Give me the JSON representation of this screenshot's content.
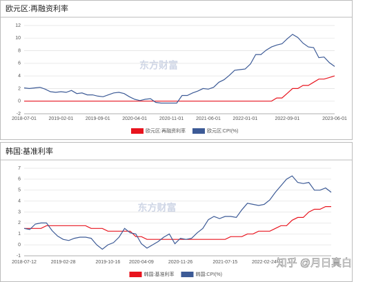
{
  "chart_data": [
    {
      "type": "line",
      "title": "欧元区:再融资利率",
      "watermark": "东方财富",
      "categories": [
        "2018-07-01",
        null,
        null,
        null,
        null,
        null,
        null,
        "2019-02-01",
        null,
        null,
        null,
        null,
        null,
        null,
        "2019-09-01",
        null,
        null,
        null,
        null,
        null,
        null,
        "2020-04-01",
        null,
        null,
        null,
        null,
        null,
        null,
        "2020-11-01",
        null,
        null,
        null,
        null,
        null,
        null,
        "2021-06-01",
        null,
        null,
        null,
        null,
        null,
        null,
        "2022-01-01",
        null,
        null,
        null,
        null,
        null,
        null,
        null,
        "2022-09-01",
        null,
        null,
        null,
        null,
        null,
        null,
        null,
        null,
        "2023-06-01"
      ],
      "series": [
        {
          "name": "欧元区:再融资利率",
          "color": "#e8141e",
          "values": [
            0,
            0,
            0,
            0,
            0,
            0,
            0,
            0,
            0,
            0,
            0,
            0,
            0,
            0,
            0,
            0,
            0,
            0,
            0,
            0,
            0,
            0,
            0,
            0,
            0,
            0,
            0,
            0,
            0,
            0,
            0,
            0,
            0,
            0,
            0,
            0,
            0,
            0,
            0,
            0,
            0,
            0,
            0,
            0,
            0,
            0,
            0,
            0,
            0.5,
            0.5,
            1.25,
            2.0,
            2.0,
            2.5,
            2.5,
            3.0,
            3.5,
            3.5,
            3.75,
            4.0
          ]
        },
        {
          "name": "欧元区:CPI(%)",
          "color": "#3c5a96",
          "values": [
            2.1,
            2.0,
            2.1,
            2.2,
            1.9,
            1.5,
            1.4,
            1.5,
            1.4,
            1.7,
            1.2,
            1.3,
            1.0,
            1.0,
            0.8,
            0.7,
            1.0,
            1.3,
            1.4,
            1.2,
            0.7,
            0.3,
            0.1,
            0.3,
            0.4,
            -0.2,
            -0.3,
            -0.3,
            -0.3,
            -0.3,
            0.9,
            0.9,
            1.3,
            1.6,
            2.0,
            1.9,
            2.2,
            3.0,
            3.4,
            4.1,
            4.9,
            5.0,
            5.1,
            5.9,
            7.4,
            7.4,
            8.1,
            8.6,
            8.9,
            9.1,
            9.9,
            10.6,
            10.1,
            9.2,
            8.6,
            8.5,
            6.9,
            7.0,
            6.1,
            5.5
          ]
        }
      ],
      "ylim": [
        -2,
        12
      ],
      "yticks": [
        -2,
        0,
        2,
        4,
        6,
        8,
        10,
        12
      ],
      "grid": true
    },
    {
      "type": "line",
      "title": "韩国:基准利率",
      "watermark": "东方财富",
      "categories": [
        "2018-07-12",
        null,
        null,
        null,
        null,
        null,
        null,
        "2019-02-28",
        null,
        null,
        null,
        null,
        null,
        null,
        null,
        "2019-10-16",
        null,
        null,
        null,
        null,
        null,
        "2020-04-09",
        null,
        null,
        null,
        null,
        null,
        null,
        "2020-11-26",
        null,
        null,
        null,
        null,
        null,
        null,
        null,
        "2021-07-15",
        null,
        null,
        null,
        null,
        null,
        null,
        "2022-02-24",
        null,
        null,
        null,
        null,
        null,
        null,
        null,
        null,
        null,
        null,
        null,
        null
      ],
      "series": [
        {
          "name": "韩国:基准利率",
          "color": "#e8141e",
          "values": [
            1.5,
            1.5,
            1.5,
            1.5,
            1.75,
            1.75,
            1.75,
            1.75,
            1.75,
            1.75,
            1.75,
            1.75,
            1.5,
            1.5,
            1.5,
            1.25,
            1.25,
            1.25,
            1.25,
            1.25,
            0.75,
            0.75,
            0.5,
            0.5,
            0.5,
            0.5,
            0.5,
            0.5,
            0.5,
            0.5,
            0.5,
            0.5,
            0.5,
            0.5,
            0.5,
            0.5,
            0.5,
            0.75,
            0.75,
            0.75,
            1.0,
            1.0,
            1.25,
            1.25,
            1.25,
            1.5,
            1.75,
            1.75,
            2.25,
            2.5,
            2.5,
            3.0,
            3.25,
            3.25,
            3.5,
            3.5
          ]
        },
        {
          "name": "韩国:CPI(%)",
          "color": "#3c5a96",
          "values": [
            1.5,
            1.4,
            1.9,
            2.0,
            2.0,
            1.3,
            0.8,
            0.5,
            0.4,
            0.6,
            0.7,
            0.7,
            0.6,
            0.0,
            -0.4,
            0.0,
            0.2,
            0.7,
            1.5,
            1.1,
            1.0,
            0.1,
            -0.3,
            0.0,
            0.3,
            0.7,
            1.0,
            0.1,
            0.6,
            0.5,
            0.6,
            1.1,
            1.5,
            2.3,
            2.6,
            2.4,
            2.6,
            2.6,
            2.5,
            3.2,
            3.8,
            3.7,
            3.6,
            3.7,
            4.1,
            4.8,
            5.4,
            6.0,
            6.3,
            5.7,
            5.6,
            5.7,
            5.0,
            5.0,
            5.2,
            4.8
          ]
        }
      ],
      "ylim": [
        -1,
        7
      ],
      "yticks": [
        -1,
        0,
        1,
        2,
        3,
        4,
        5,
        6,
        7
      ],
      "grid": true
    }
  ],
  "footer_watermark": "知乎 @月日真白"
}
